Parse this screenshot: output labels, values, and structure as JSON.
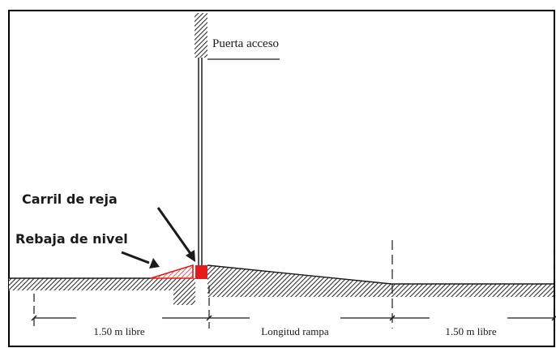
{
  "labels": {
    "door": "Puerta acceso",
    "rail": "Carril de reja",
    "level_drop": "Rebaja de nivel"
  },
  "dimensions": {
    "left_clear": "1.50 m libre",
    "ramp_length": "Longitud rampa",
    "right_clear": "1.50 m libre"
  },
  "colors": {
    "ink": "#1a1a1a",
    "hatch": "#333333",
    "accent": "#e31b1b",
    "border": "#000000"
  }
}
